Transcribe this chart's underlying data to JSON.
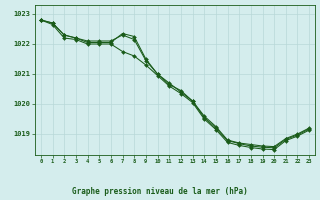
{
  "xlabel": "Graphe pression niveau de la mer (hPa)",
  "bg_color": "#d4eded",
  "grid_color": "#b8d8d8",
  "line_color": "#1a5c1a",
  "hours": [
    0,
    1,
    2,
    3,
    4,
    5,
    6,
    7,
    8,
    9,
    10,
    11,
    12,
    13,
    14,
    15,
    16,
    17,
    18,
    19,
    20,
    21,
    22,
    23
  ],
  "series1": [
    1022.8,
    1022.7,
    1022.3,
    1022.2,
    1022.05,
    1022.05,
    1022.05,
    1022.35,
    1022.25,
    1021.5,
    1021.0,
    1020.65,
    1020.45,
    1020.1,
    1019.6,
    1019.25,
    1018.8,
    1018.7,
    1018.65,
    1018.6,
    1018.58,
    1018.85,
    1019.0,
    1019.2
  ],
  "series2": [
    1022.8,
    1022.7,
    1022.3,
    1022.2,
    1022.1,
    1022.1,
    1022.1,
    1022.3,
    1022.15,
    1021.45,
    1021.0,
    1020.7,
    1020.4,
    1020.1,
    1019.55,
    1019.2,
    1018.78,
    1018.68,
    1018.6,
    1018.56,
    1018.54,
    1018.82,
    1018.97,
    1019.17
  ],
  "series3": [
    1022.8,
    1022.65,
    1022.2,
    1022.15,
    1022.0,
    1022.0,
    1022.0,
    1021.75,
    1021.6,
    1021.3,
    1020.95,
    1020.6,
    1020.35,
    1020.05,
    1019.5,
    1019.15,
    1018.72,
    1018.62,
    1018.55,
    1018.5,
    1018.48,
    1018.78,
    1018.93,
    1019.13
  ],
  "ylim_min": 1018.3,
  "ylim_max": 1023.3,
  "yticks": [
    1019,
    1020,
    1021,
    1022,
    1023
  ]
}
